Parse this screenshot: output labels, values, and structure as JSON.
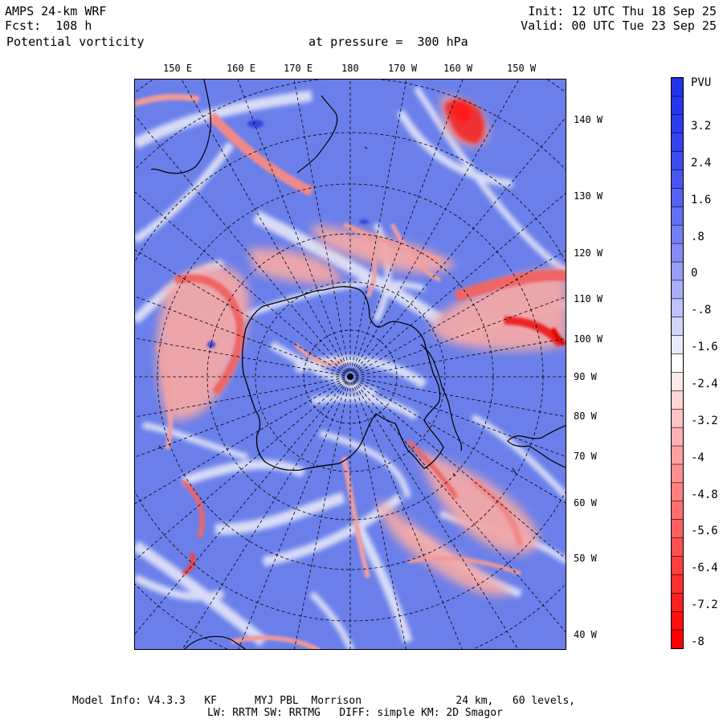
{
  "header": {
    "model": "AMPS 24-km WRF",
    "forecast": "Fcst:  108 h",
    "field": "Potential vorticity",
    "level": "at pressure =  300 hPa",
    "init": "Init: 12 UTC Thu 18 Sep 25",
    "valid": "Valid: 00 UTC Tue 23 Sep 25"
  },
  "top_labels": [
    "150 E",
    "160 E",
    "170 E",
    "180",
    "170 W",
    "160 W",
    "150 W"
  ],
  "right_labels": [
    "140 W",
    "130 W",
    "120 W",
    "110 W",
    "100 W",
    "90 W",
    "80 W",
    "70 W",
    "60 W",
    "50 W",
    "40 W"
  ],
  "colorbar": {
    "unit": "PVU",
    "labels": [
      "3.2",
      "2.4",
      "1.6",
      ".8",
      "0",
      "-.8",
      "-1.6",
      "-2.4",
      "-3.2",
      "-4",
      "-4.8",
      "-5.6",
      "-6.4",
      "-7.2",
      "-8"
    ],
    "colors": {
      "high": "#2233ee",
      "mid_blue": "#7788ee",
      "neutral": "#ffffff",
      "mid_red": "#f09090",
      "low": "#ff0000"
    }
  },
  "colors": {
    "background_blue": "#6a7fea",
    "pv_red": "#ee5555",
    "coast": "#000000"
  },
  "footer": {
    "line1": "Model Info: V4.3.3   KF      MYJ PBL  Morrison               24 km,   60 levels,",
    "line2": "LW: RRTM SW: RRTMG   DIFF: simple KM: 2D Smagor"
  }
}
